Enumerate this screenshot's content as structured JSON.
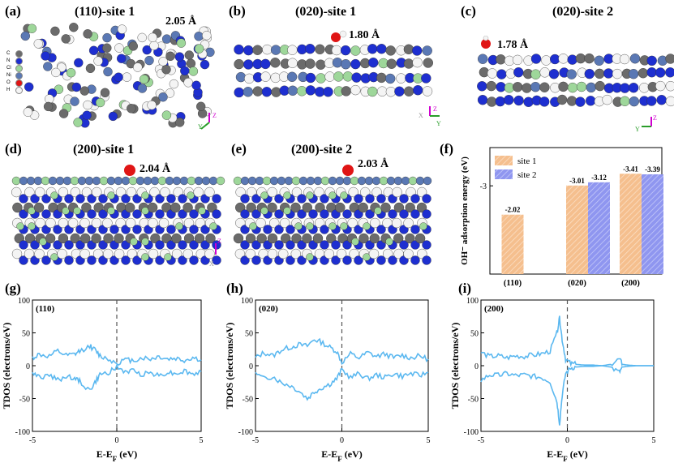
{
  "panels": {
    "a": {
      "label": "(a)",
      "title": "(110)-site 1",
      "distance": "2.05 Å"
    },
    "b": {
      "label": "(b)",
      "title": "(020)-site 1",
      "distance": "1.80 Å"
    },
    "c": {
      "label": "(c)",
      "title": "(020)-site 2",
      "distance": "1.78 Å"
    },
    "d": {
      "label": "(d)",
      "title": "(200)-site 1",
      "distance": "2.04 Å"
    },
    "e": {
      "label": "(e)",
      "title": "(200)-site 2",
      "distance": "2.03 Å"
    },
    "f": {
      "label": "(f)"
    },
    "g": {
      "label": "(g)",
      "inset": "(110)"
    },
    "h": {
      "label": "(h)",
      "inset": "(020)"
    },
    "i": {
      "label": "(i)",
      "inset": "(200)"
    }
  },
  "atom_legend": [
    "C",
    "N",
    "Cl",
    "Ni",
    "O",
    "H"
  ],
  "axes_labels": {
    "x": "X",
    "y": "Y",
    "z": "Z"
  },
  "colors": {
    "carbon": "#6b6b6b",
    "nitrogen": "#1e2fd0",
    "chlorine": "#9ed79a",
    "nickel": "#5a78b4",
    "oxygen": "#e01515",
    "hydrogen": "#f4f4f4",
    "site1": "#f5bf8e",
    "site2": "#8f96f0",
    "dos_line": "#5bb8f0"
  },
  "chart_data": [
    {
      "type": "bar",
      "ylabel": "OH⁻ adsorption energy (eV)",
      "categories": [
        "(110)",
        "(020)",
        "(200)"
      ],
      "series": [
        {
          "name": "site 1",
          "values": [
            -2.02,
            -3.01,
            -3.41
          ],
          "labels": [
            "-2.02",
            "-3.01",
            "-3.41"
          ]
        },
        {
          "name": "site 2",
          "values": [
            null,
            -3.12,
            -3.39
          ],
          "labels": [
            "",
            "-3.12",
            "-3.39"
          ]
        }
      ],
      "ylim": [
        0,
        -4.3
      ],
      "yticks": [
        -3
      ],
      "ytick_labels": [
        "-3"
      ],
      "legend": "top-left"
    },
    {
      "type": "line",
      "panel": "g",
      "xlabel": "E-E_F (eV)",
      "ylabel": "TDOS (electrons/eV)",
      "xlim": [
        -5,
        5
      ],
      "ylim": [
        -100,
        100
      ],
      "xticks": [
        -5,
        0,
        5
      ],
      "yticks": [
        -100,
        -50,
        0,
        50,
        100
      ],
      "peak_up": [
        [
          -5,
          12
        ],
        [
          -4.6,
          17
        ],
        [
          -4,
          14
        ],
        [
          -3.5,
          22
        ],
        [
          -3,
          15
        ],
        [
          -2.5,
          17
        ],
        [
          -2.2,
          22
        ],
        [
          -1.6,
          30
        ],
        [
          -1.3,
          24
        ],
        [
          -1,
          15
        ],
        [
          -0.5,
          10
        ],
        [
          0,
          4
        ],
        [
          0.5,
          9
        ],
        [
          1,
          8
        ],
        [
          1.5,
          12
        ],
        [
          2,
          10
        ],
        [
          2.5,
          14
        ],
        [
          3,
          10
        ],
        [
          3.5,
          11
        ],
        [
          4,
          8
        ],
        [
          4.5,
          12
        ],
        [
          5,
          9
        ]
      ],
      "peak_down": [
        [
          -5,
          -12
        ],
        [
          -4.6,
          -18
        ],
        [
          -4,
          -14
        ],
        [
          -3.5,
          -22
        ],
        [
          -3,
          -16
        ],
        [
          -2.5,
          -19
        ],
        [
          -2.2,
          -24
        ],
        [
          -1.6,
          -38
        ],
        [
          -1.3,
          -26
        ],
        [
          -1,
          -14
        ],
        [
          -0.5,
          -10
        ],
        [
          0,
          -3
        ],
        [
          0.5,
          -9
        ],
        [
          1,
          -8
        ],
        [
          1.5,
          -13
        ],
        [
          2,
          -10
        ],
        [
          2.5,
          -15
        ],
        [
          3,
          -10
        ],
        [
          3.5,
          -12
        ],
        [
          4,
          -8
        ],
        [
          4.5,
          -13
        ],
        [
          5,
          -9
        ]
      ]
    },
    {
      "type": "line",
      "panel": "h",
      "xlabel": "E-E_F (eV)",
      "ylabel": "TDOS (electrons/eV)",
      "xlim": [
        -5,
        5
      ],
      "ylim": [
        -100,
        100
      ],
      "xticks": [
        -5,
        0,
        5
      ],
      "yticks": [
        -100,
        -50,
        0,
        50,
        100
      ],
      "peak_up": [
        [
          -5,
          12
        ],
        [
          -4.5,
          20
        ],
        [
          -4,
          15
        ],
        [
          -3.5,
          24
        ],
        [
          -3,
          28
        ],
        [
          -2.5,
          32
        ],
        [
          -2,
          30
        ],
        [
          -1.6,
          40
        ],
        [
          -1.2,
          36
        ],
        [
          -0.7,
          28
        ],
        [
          -0.3,
          22
        ],
        [
          0,
          5
        ],
        [
          0.5,
          18
        ],
        [
          1,
          12
        ],
        [
          1.5,
          20
        ],
        [
          2,
          14
        ],
        [
          2.5,
          18
        ],
        [
          3,
          12
        ],
        [
          3.5,
          16
        ],
        [
          4,
          12
        ],
        [
          4.5,
          15
        ],
        [
          5,
          10
        ]
      ],
      "peak_down": [
        [
          -5,
          -12
        ],
        [
          -4.5,
          -20
        ],
        [
          -4,
          -16
        ],
        [
          -3.5,
          -26
        ],
        [
          -3,
          -30
        ],
        [
          -2.5,
          -38
        ],
        [
          -2,
          -50
        ],
        [
          -1.6,
          -40
        ],
        [
          -1.2,
          -34
        ],
        [
          -0.7,
          -28
        ],
        [
          -0.3,
          -20
        ],
        [
          0,
          -6
        ],
        [
          0.5,
          -18
        ],
        [
          1,
          -12
        ],
        [
          1.5,
          -20
        ],
        [
          2,
          -14
        ],
        [
          2.5,
          -18
        ],
        [
          3,
          -12
        ],
        [
          3.5,
          -16
        ],
        [
          4,
          -12
        ],
        [
          4.5,
          -15
        ],
        [
          5,
          -10
        ]
      ]
    },
    {
      "type": "line",
      "panel": "i",
      "xlabel": "E-E_F (eV)",
      "ylabel": "TDOS (electrons/eV)",
      "xlim": [
        -5,
        5
      ],
      "ylim": [
        -100,
        100
      ],
      "xticks": [
        -5,
        0,
        5
      ],
      "yticks": [
        -100,
        -50,
        0,
        50,
        100
      ],
      "peak_up": [
        [
          -5,
          20
        ],
        [
          -4.5,
          14
        ],
        [
          -4,
          15
        ],
        [
          -3.5,
          12
        ],
        [
          -3,
          15
        ],
        [
          -2.5,
          14
        ],
        [
          -2,
          16
        ],
        [
          -1.5,
          18
        ],
        [
          -1,
          22
        ],
        [
          -0.6,
          50
        ],
        [
          -0.45,
          72
        ],
        [
          -0.3,
          40
        ],
        [
          -0.1,
          10
        ],
        [
          0.2,
          3
        ],
        [
          0.5,
          2
        ],
        [
          1,
          1
        ],
        [
          1.5,
          1
        ],
        [
          2,
          0
        ],
        [
          2.5,
          2
        ],
        [
          3,
          10
        ],
        [
          3.2,
          2
        ],
        [
          3.5,
          1
        ],
        [
          4,
          0
        ],
        [
          5,
          0
        ]
      ],
      "peak_down": [
        [
          -5,
          -22
        ],
        [
          -4.5,
          -14
        ],
        [
          -4,
          -15
        ],
        [
          -3.5,
          -12
        ],
        [
          -3,
          -15
        ],
        [
          -2.5,
          -14
        ],
        [
          -2,
          -16
        ],
        [
          -1.5,
          -18
        ],
        [
          -1,
          -24
        ],
        [
          -0.6,
          -55
        ],
        [
          -0.45,
          -88
        ],
        [
          -0.3,
          -45
        ],
        [
          -0.1,
          -12
        ],
        [
          0.2,
          -3
        ],
        [
          0.5,
          -2
        ],
        [
          1,
          -1
        ],
        [
          1.5,
          -1
        ],
        [
          2,
          0
        ],
        [
          2.5,
          -2
        ],
        [
          3,
          -10
        ],
        [
          3.2,
          -2
        ],
        [
          3.5,
          -1
        ],
        [
          4,
          0
        ],
        [
          5,
          0
        ]
      ]
    }
  ]
}
